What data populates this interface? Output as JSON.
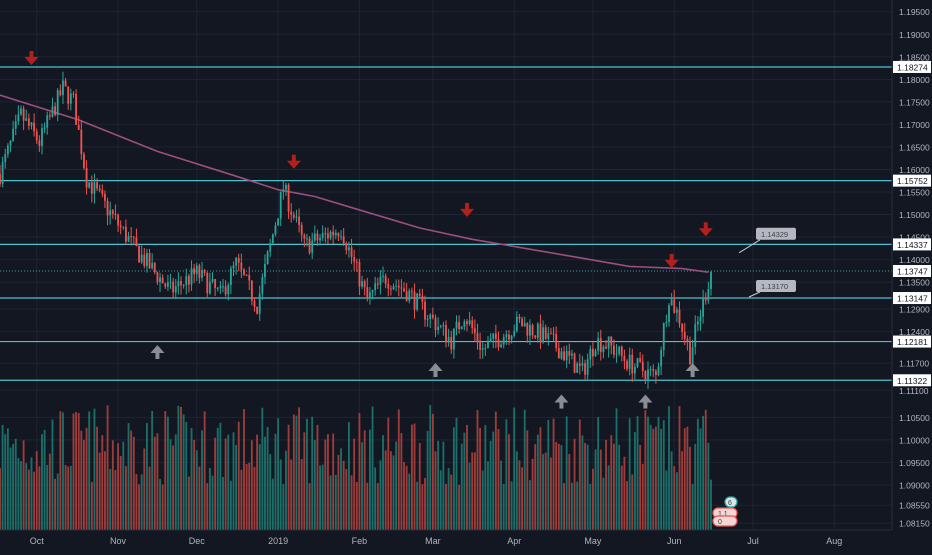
{
  "chart_data": {
    "type": "candlestick",
    "price_axis": {
      "ylim": [
        1.08,
        1.1976
      ],
      "ticks": [
        "1.19500",
        "1.19000",
        "1.18500",
        "1.18000",
        "1.17500",
        "1.17000",
        "1.16500",
        "1.16000",
        "1.15500",
        "1.15000",
        "1.14500",
        "1.14000",
        "1.13500",
        "1.12900",
        "1.12400",
        "1.11700",
        "1.11100",
        "1.10500",
        "1.10000",
        "1.09500",
        "1.09000",
        "1.08550",
        "1.08150"
      ],
      "tick_values": [
        1.195,
        1.19,
        1.185,
        1.18,
        1.175,
        1.17,
        1.165,
        1.16,
        1.155,
        1.15,
        1.145,
        1.14,
        1.135,
        1.129,
        1.124,
        1.117,
        1.111,
        1.105,
        1.1,
        1.095,
        1.09,
        1.0855,
        1.0815
      ]
    },
    "time_axis": {
      "labels": [
        "Oct",
        "Nov",
        "Dec",
        "2019",
        "Feb",
        "Mar",
        "Apr",
        "May",
        "Jun",
        "Jul",
        "Aug"
      ],
      "label_days": [
        14,
        45,
        75,
        106,
        137,
        165,
        196,
        226,
        257,
        287,
        318
      ],
      "x_range_days": [
        0,
        340
      ],
      "last_bar_day": 271
    },
    "candles_summary": {
      "start_day": 0,
      "end_day": 271,
      "step_days": 1,
      "waypoints_day": [
        0,
        8,
        15,
        24,
        28,
        33,
        40,
        52,
        65,
        75,
        84,
        90,
        98,
        108,
        116,
        130,
        140,
        147,
        155,
        172,
        177,
        184,
        198,
        210,
        222,
        227,
        232,
        240,
        250,
        255,
        259,
        263,
        270,
        271
      ],
      "waypoints_close": [
        1.159,
        1.172,
        1.166,
        1.178,
        1.175,
        1.158,
        1.152,
        1.142,
        1.133,
        1.137,
        1.132,
        1.139,
        1.13,
        1.156,
        1.143,
        1.147,
        1.131,
        1.136,
        1.133,
        1.122,
        1.128,
        1.12,
        1.126,
        1.122,
        1.115,
        1.122,
        1.121,
        1.117,
        1.114,
        1.132,
        1.127,
        1.119,
        1.135,
        1.1375
      ]
    },
    "volume_summary": {
      "ylim": [
        0,
        1.0
      ]
    },
    "horizontal_levels": [
      {
        "value": 1.18274,
        "label": "1.18274"
      },
      {
        "value": 1.15752,
        "label": "1.15752"
      },
      {
        "value": 1.14337,
        "label": "1.14337"
      },
      {
        "value": 1.13147,
        "label": "1.13147"
      },
      {
        "value": 1.12181,
        "label": "1.12181"
      },
      {
        "value": 1.11322,
        "label": "1.11322"
      }
    ],
    "current_price": {
      "value": 1.13747,
      "label": "1.13747"
    },
    "moving_average": {
      "color": "#9b4f7e",
      "days": [
        0,
        30,
        60,
        90,
        106,
        120,
        140,
        160,
        180,
        200,
        220,
        240,
        260,
        270
      ],
      "values": [
        1.1765,
        1.171,
        1.164,
        1.1585,
        1.1555,
        1.154,
        1.1505,
        1.147,
        1.1445,
        1.1425,
        1.1405,
        1.1385,
        1.138,
        1.1372
      ]
    },
    "callouts": [
      {
        "label": "1.14329",
        "value": 1.14329
      },
      {
        "label": "1.13170",
        "value": 1.1317
      }
    ],
    "arrows_down": [
      {
        "day": 12,
        "value": 1.1845
      },
      {
        "day": 112,
        "value": 1.1615
      },
      {
        "day": 178,
        "value": 1.1508
      },
      {
        "day": 256,
        "value": 1.1395
      },
      {
        "day": 269,
        "value": 1.1465
      }
    ],
    "arrows_up": [
      {
        "day": 60,
        "value": 1.1195
      },
      {
        "day": 166,
        "value": 1.1155
      },
      {
        "day": 214,
        "value": 1.1085
      },
      {
        "day": 246,
        "value": 1.1085
      },
      {
        "day": 264,
        "value": 1.1155
      }
    ],
    "volume_badges": [
      "6",
      "1.1",
      "0"
    ]
  },
  "colors": {
    "background": "#131722",
    "grid": "#1f2433",
    "bull": "#26a69a",
    "bear": "#ef5350",
    "bull_volume": "#1f7f76",
    "bear_volume": "#b6443f",
    "level": "#4fc1d0",
    "axis_text": "#b2b5be",
    "label_bg": "#ffffff",
    "label_text": "#131722",
    "arrow_down": "#b3201c",
    "arrow_up": "#8a8d94",
    "callout_bg": "#c8cad1",
    "callout_text": "#3b3f4a"
  }
}
